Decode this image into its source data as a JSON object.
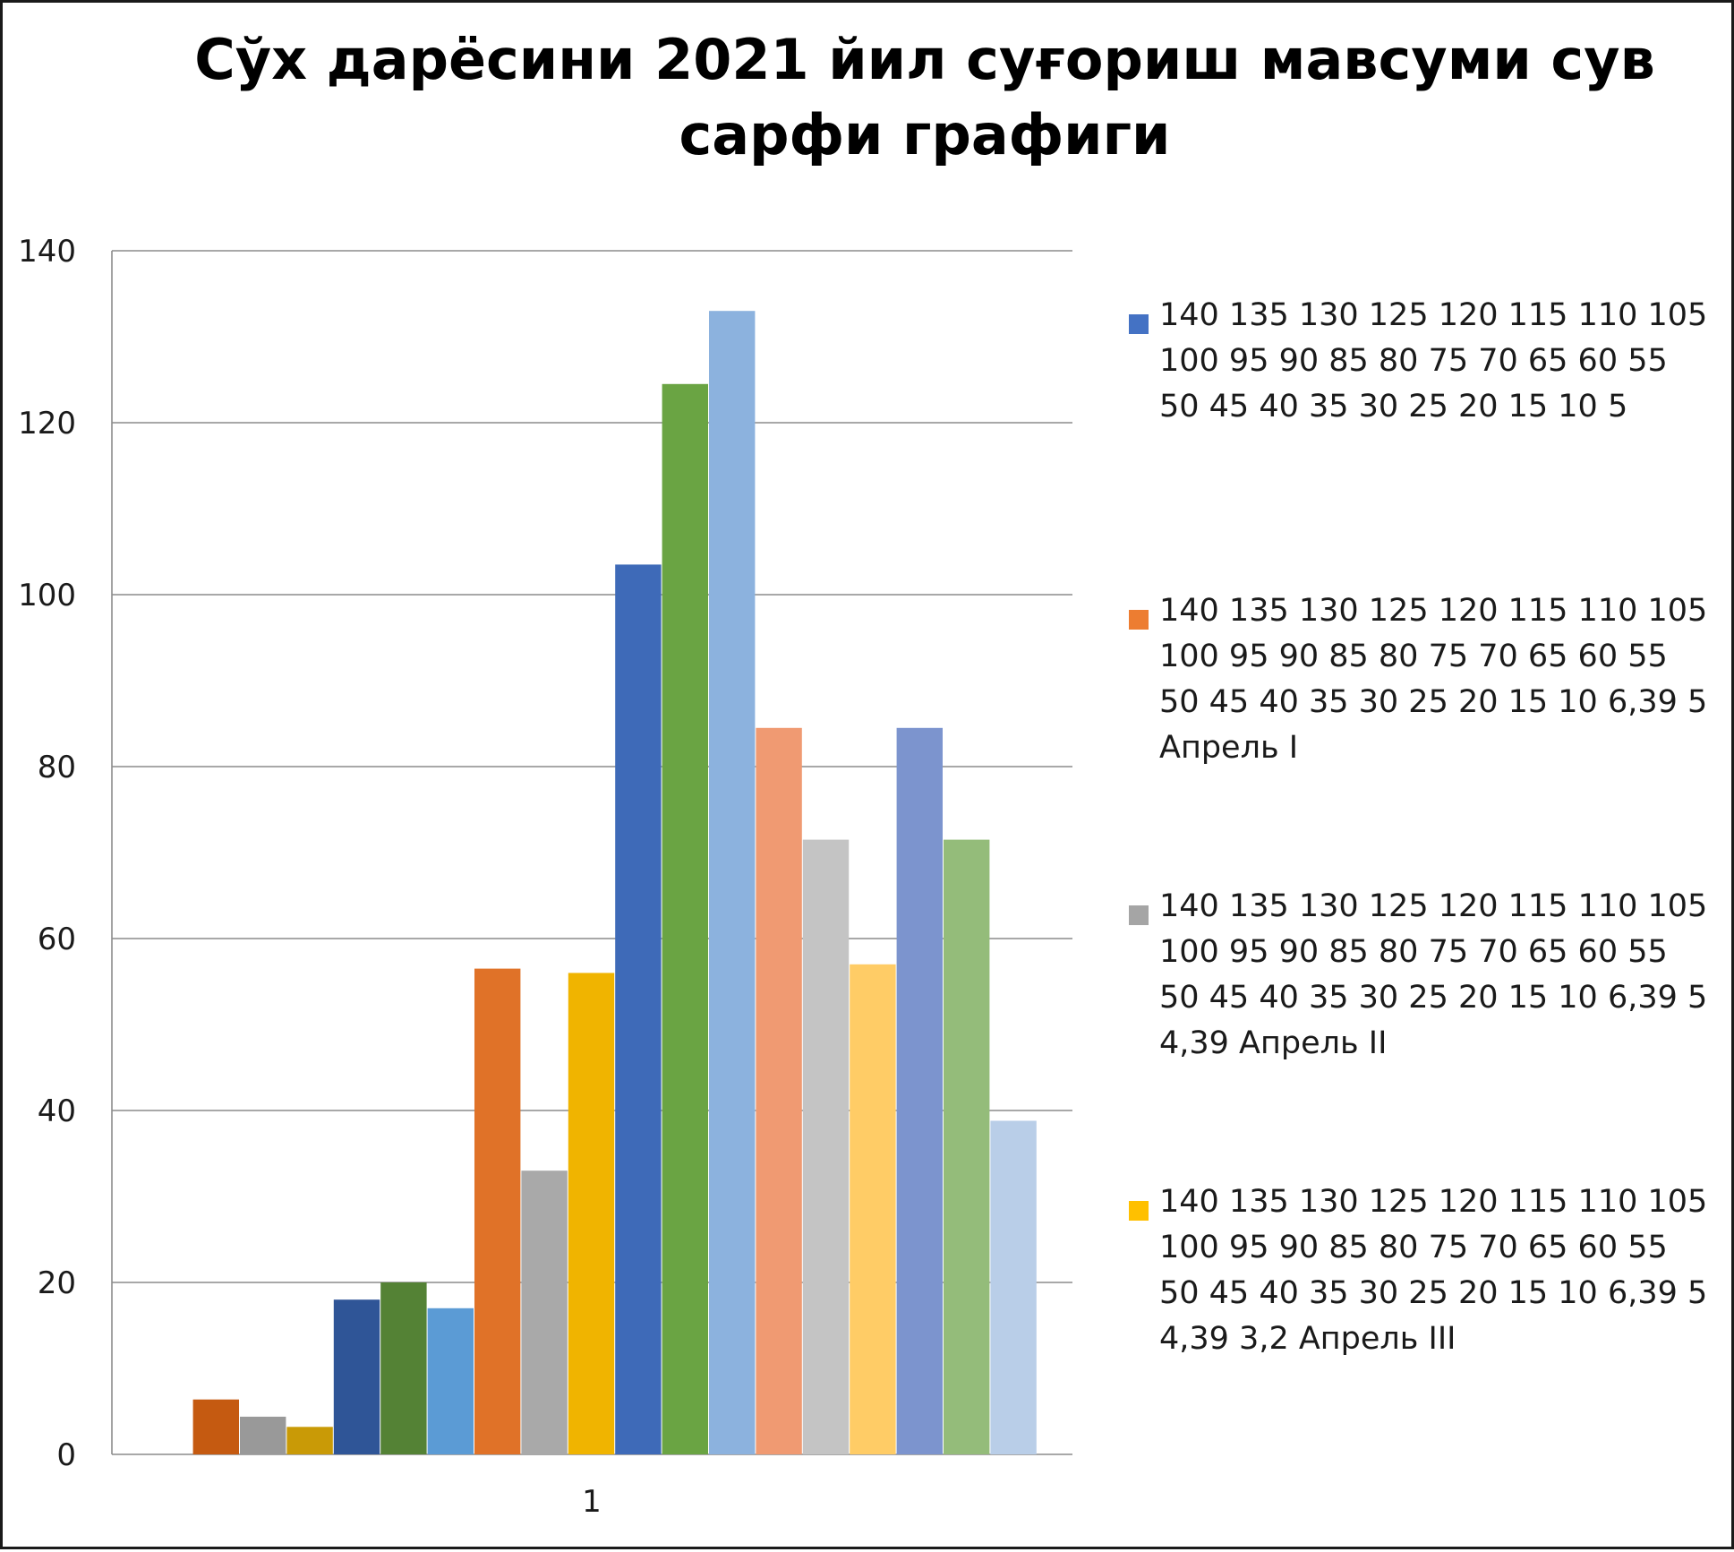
{
  "chart_data": {
    "type": "bar",
    "title": "Сўх дарёсини 2021 йил суғориш мавсуми сув сарфи графиги",
    "categories": [
      "1"
    ],
    "ylim": [
      0,
      140
    ],
    "yticks": [
      "0",
      "20",
      "40",
      "60",
      "80",
      "100",
      "120",
      "140"
    ],
    "grid": true,
    "legend_position": "right",
    "legend": [
      {
        "label": "140 135 130 125 120 115 110 105 100 95 90 85 80 75 70 65 60 55 50 45 40 35 30 25 20 15 10 5",
        "color": "#4472C4"
      },
      {
        "label": "140 135 130 125 120 115 110 105 100 95 90 85 80 75 70 65 60 55 50 45 40 35 30 25 20 15 10 6,39 5 Апрель I",
        "color": "#ED7D31"
      },
      {
        "label": "140 135 130 125 120 115 110 105 100 95 90 85 80 75 70 65 60 55 50 45 40 35 30 25 20 15 10 6,39 5 4,39 Апрель II",
        "color": "#A5A5A5"
      },
      {
        "label": "140 135 130 125 120 115 110 105 100 95 90 85 80 75 70 65 60 55 50 45 40 35 30 25 20 15 10 6,39 5 4,39 3,2 Апрель III",
        "color": "#FFC000"
      }
    ],
    "series": [
      {
        "values": [
          0
        ],
        "color": "#4472C4"
      },
      {
        "values": [
          6.39
        ],
        "color": "#C55A11"
      },
      {
        "values": [
          4.39
        ],
        "color": "#999999"
      },
      {
        "values": [
          3.2
        ],
        "color": "#C99A06"
      },
      {
        "values": [
          18
        ],
        "color": "#2F5597"
      },
      {
        "values": [
          20
        ],
        "color": "#548235"
      },
      {
        "values": [
          17
        ],
        "color": "#5B9BD5"
      },
      {
        "values": [
          56.5
        ],
        "color": "#E07228"
      },
      {
        "values": [
          33
        ],
        "color": "#A9A9A9"
      },
      {
        "values": [
          56
        ],
        "color": "#F0B400"
      },
      {
        "values": [
          103.5
        ],
        "color": "#3E6AB8"
      },
      {
        "values": [
          124.5
        ],
        "color": "#6AA443"
      },
      {
        "values": [
          133
        ],
        "color": "#8CB2DE"
      },
      {
        "values": [
          84.5
        ],
        "color": "#F09A72"
      },
      {
        "values": [
          71.5
        ],
        "color": "#C4C4C4"
      },
      {
        "values": [
          57
        ],
        "color": "#FFCC66"
      },
      {
        "values": [
          84.5
        ],
        "color": "#7C94CE"
      },
      {
        "values": [
          71.5
        ],
        "color": "#94BC7A"
      },
      {
        "values": [
          38.8
        ],
        "color": "#B9CEE8"
      }
    ]
  }
}
